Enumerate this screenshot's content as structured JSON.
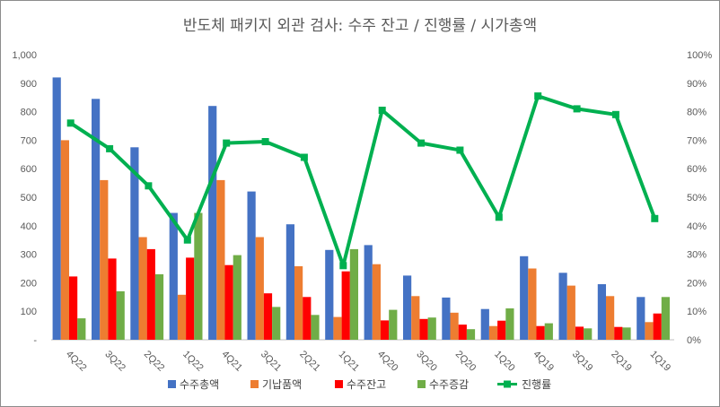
{
  "chart_data": {
    "type": "bar",
    "title": "반도체 패키지 외관 검사: 수주 잔고 / 진행률 / 시가총액",
    "categories": [
      "4Q22",
      "3Q22",
      "2Q22",
      "1Q22",
      "4Q21",
      "3Q21",
      "2Q21",
      "1Q21",
      "4Q20",
      "3Q20",
      "2Q20",
      "1Q20",
      "4Q19",
      "3Q19",
      "2Q19",
      "1Q19"
    ],
    "y_left": {
      "min": 0,
      "max": 1000,
      "step": 100,
      "ticks": [
        "-",
        "100",
        "200",
        "300",
        "400",
        "500",
        "600",
        "700",
        "800",
        "900",
        "1,000"
      ]
    },
    "y_right": {
      "min": 0,
      "max": 100,
      "step": 10,
      "ticks": [
        "0%",
        "10%",
        "20%",
        "30%",
        "40%",
        "50%",
        "60%",
        "70%",
        "80%",
        "90%",
        "100%"
      ]
    },
    "series": [
      {
        "name": "수주총액",
        "kind": "bar",
        "axis": "left",
        "color": "#4472C4",
        "values": [
          920,
          845,
          675,
          445,
          820,
          520,
          405,
          315,
          332,
          225,
          148,
          108,
          293,
          235,
          195,
          150
        ]
      },
      {
        "name": "기납품액",
        "kind": "bar",
        "axis": "left",
        "color": "#ED7D31",
        "values": [
          700,
          560,
          360,
          158,
          560,
          360,
          258,
          80,
          265,
          153,
          95,
          48,
          250,
          190,
          153,
          62
        ]
      },
      {
        "name": "수주잔고",
        "kind": "bar",
        "axis": "left",
        "color": "#FF0000",
        "values": [
          222,
          285,
          318,
          288,
          262,
          163,
          150,
          240,
          68,
          73,
          53,
          67,
          48,
          46,
          45,
          92
        ]
      },
      {
        "name": "수주증감",
        "kind": "bar",
        "axis": "left",
        "color": "#70AD47",
        "values": [
          75,
          170,
          230,
          445,
          297,
          115,
          87,
          318,
          105,
          78,
          37,
          110,
          58,
          40,
          43,
          150
        ]
      },
      {
        "name": "진행률",
        "kind": "line",
        "axis": "right",
        "color": "#00B050",
        "values": [
          76,
          67,
          54,
          35,
          69,
          69.5,
          64,
          26,
          80.5,
          69,
          66.5,
          43,
          85.5,
          81,
          79,
          42.5
        ]
      }
    ],
    "legend_position": "bottom",
    "grid": false
  }
}
